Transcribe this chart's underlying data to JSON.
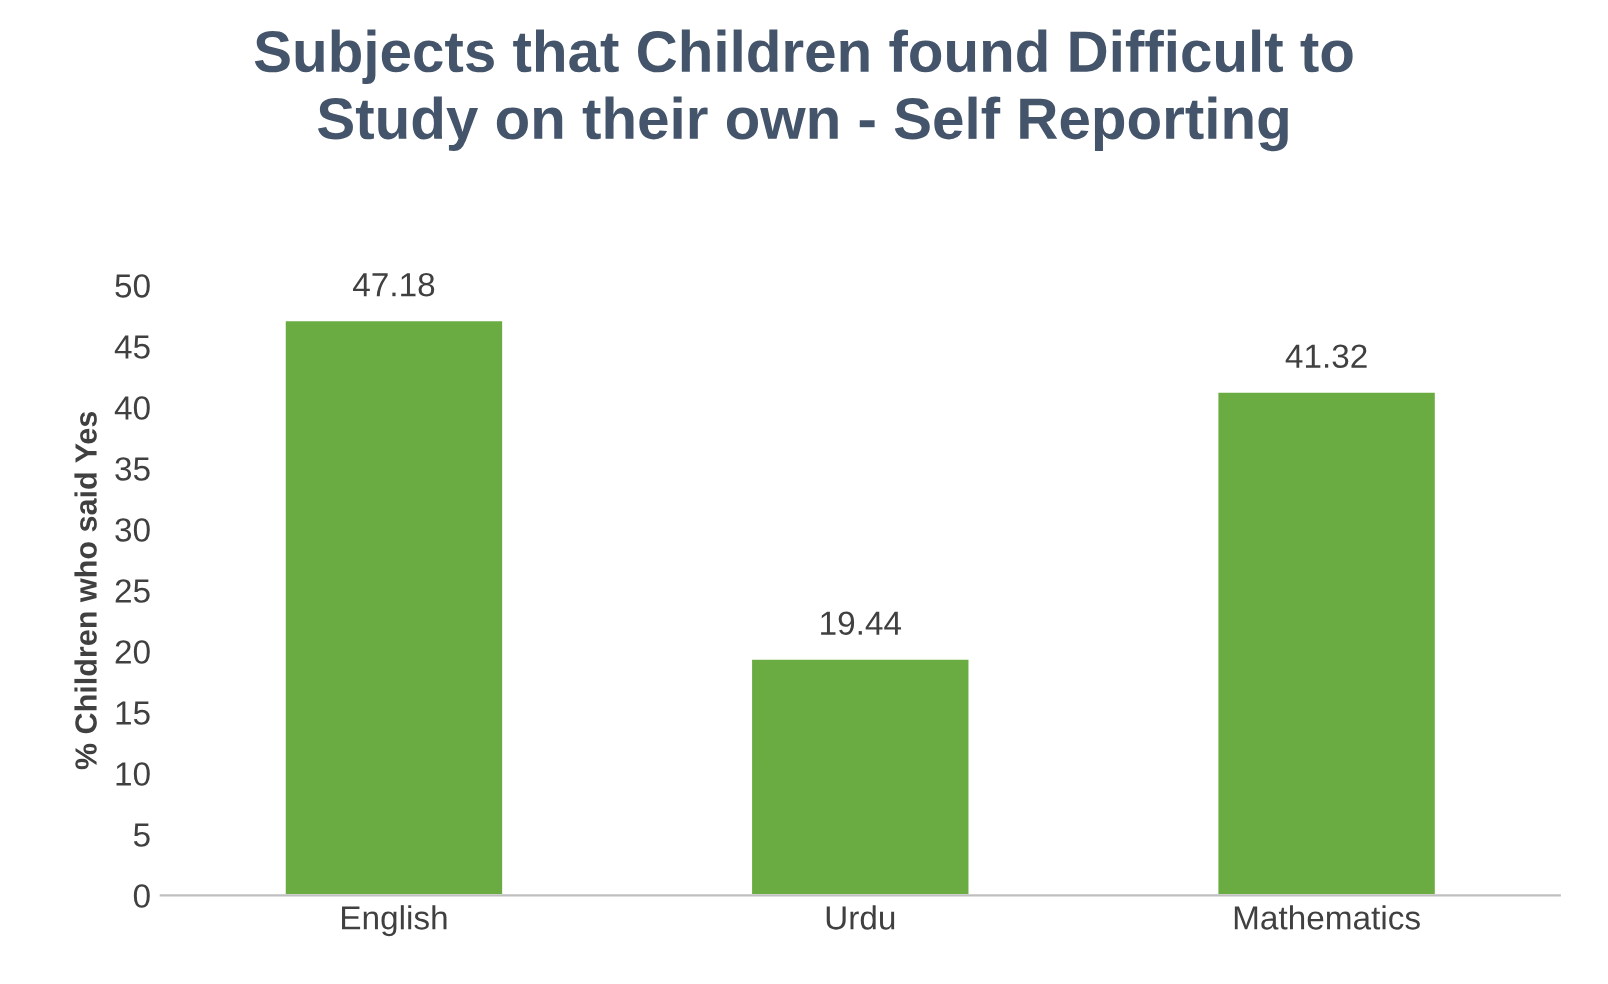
{
  "chart_data": {
    "type": "bar",
    "title": "Subjects that Children found Difficult to\nStudy on their own - Self Reporting",
    "ylabel": "% Children who said Yes",
    "categories": [
      "English",
      "Urdu",
      "Mathematics"
    ],
    "values": [
      47.18,
      19.44,
      41.32
    ],
    "color": "#6aac42",
    "ylim": [
      0,
      50
    ],
    "yticks": [
      0,
      5,
      10,
      15,
      20,
      25,
      30,
      35,
      40,
      45,
      50
    ],
    "grid": false,
    "data_labels": true
  }
}
